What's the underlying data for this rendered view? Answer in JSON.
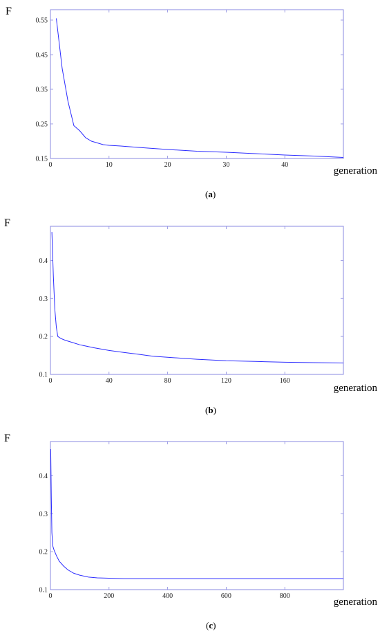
{
  "chart_data": [
    {
      "type": "line",
      "title": "",
      "ylabel": "F",
      "xlabel": "generation",
      "caption_letter": "a",
      "xlim": [
        0,
        50
      ],
      "ylim": [
        0.15,
        0.58
      ],
      "xticks": [
        0,
        10,
        20,
        30,
        40
      ],
      "yticks": [
        0.15,
        0.25,
        0.35,
        0.45,
        0.55
      ],
      "series": [
        {
          "x": [
            1,
            2,
            3,
            4,
            5,
            6,
            7,
            8,
            9,
            10,
            12,
            15,
            20,
            25,
            30,
            35,
            40,
            45,
            50
          ],
          "y": [
            0.555,
            0.41,
            0.315,
            0.245,
            0.23,
            0.21,
            0.2,
            0.195,
            0.19,
            0.188,
            0.186,
            0.182,
            0.176,
            0.171,
            0.168,
            0.164,
            0.16,
            0.157,
            0.153
          ]
        }
      ]
    },
    {
      "type": "line",
      "title": "",
      "ylabel": "F",
      "xlabel": "generation",
      "caption_letter": "b",
      "xlim": [
        0,
        200
      ],
      "ylim": [
        0.1,
        0.49
      ],
      "xticks": [
        0,
        40,
        80,
        120,
        160
      ],
      "yticks": [
        0.1,
        0.2,
        0.3,
        0.4
      ],
      "series": [
        {
          "x": [
            1,
            2,
            3,
            4,
            5,
            7,
            10,
            15,
            20,
            30,
            40,
            50,
            60,
            70,
            80,
            100,
            120,
            140,
            160,
            180,
            200
          ],
          "y": [
            0.475,
            0.36,
            0.27,
            0.225,
            0.2,
            0.195,
            0.19,
            0.184,
            0.178,
            0.17,
            0.163,
            0.158,
            0.153,
            0.148,
            0.145,
            0.14,
            0.136,
            0.134,
            0.132,
            0.131,
            0.13
          ]
        }
      ]
    },
    {
      "type": "line",
      "title": "",
      "ylabel": "F",
      "xlabel": "generation",
      "caption_letter": "c",
      "xlim": [
        0,
        1000
      ],
      "ylim": [
        0.1,
        0.49
      ],
      "xticks": [
        0,
        200,
        400,
        600,
        800
      ],
      "yticks": [
        0.1,
        0.2,
        0.3,
        0.4
      ],
      "series": [
        {
          "x": [
            1,
            3,
            5,
            8,
            12,
            20,
            30,
            45,
            60,
            80,
            100,
            130,
            160,
            200,
            250,
            300,
            400,
            500,
            600,
            700,
            800,
            900,
            1000
          ],
          "y": [
            0.47,
            0.34,
            0.25,
            0.215,
            0.205,
            0.19,
            0.175,
            0.162,
            0.152,
            0.143,
            0.138,
            0.133,
            0.131,
            0.13,
            0.129,
            0.129,
            0.129,
            0.129,
            0.129,
            0.129,
            0.129,
            0.129,
            0.129
          ]
        }
      ]
    }
  ]
}
